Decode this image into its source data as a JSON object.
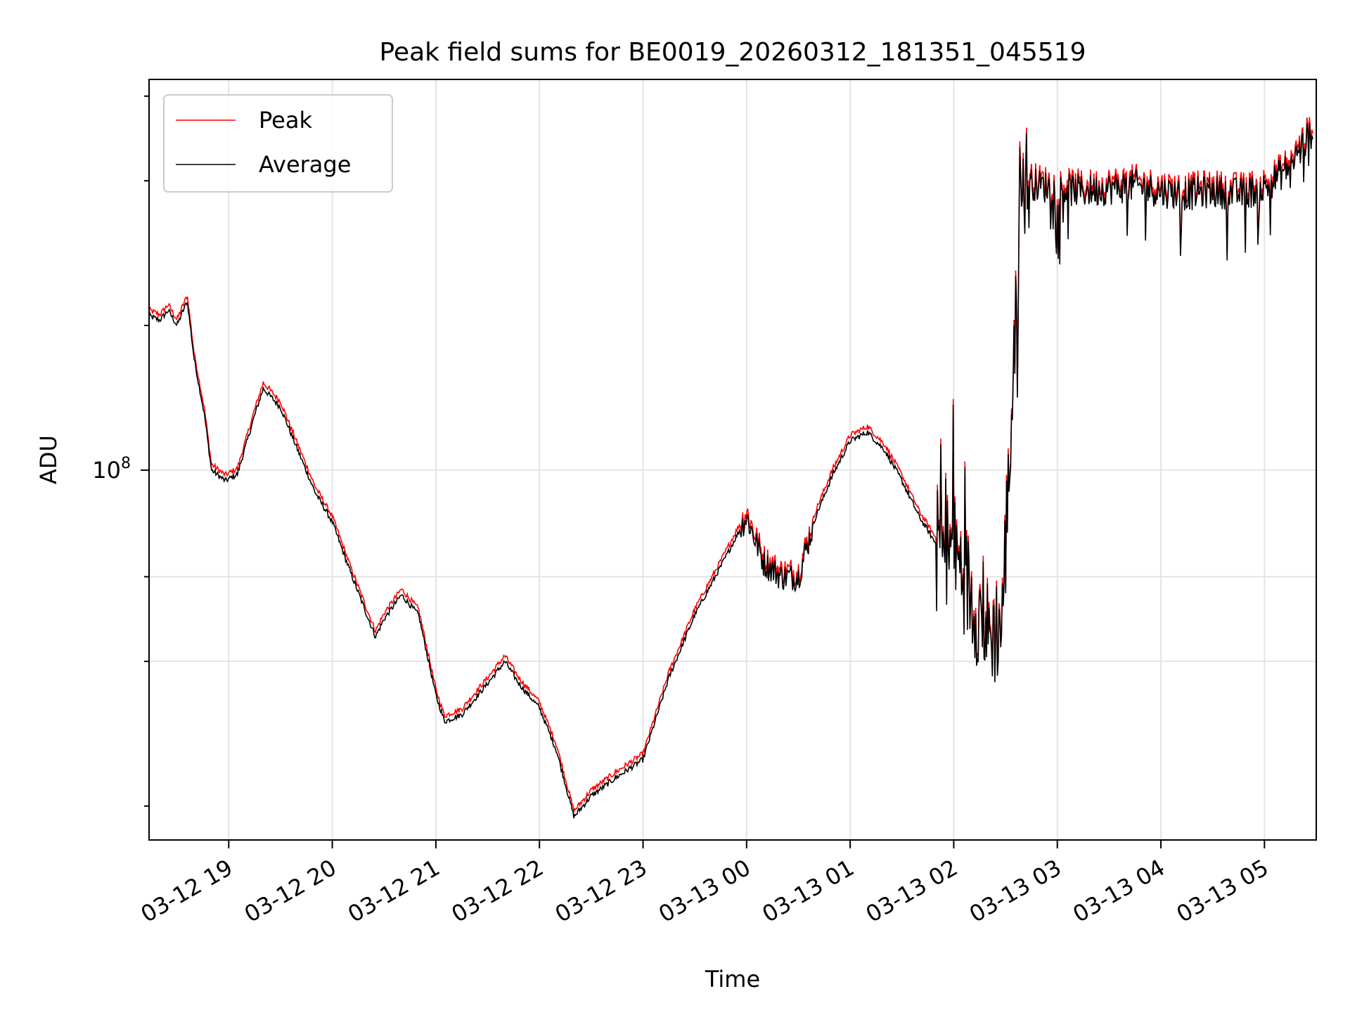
{
  "chart_data": {
    "type": "line",
    "title": "Peak field sums for BE0019_20260312_181351_045519",
    "xlabel": "Time",
    "ylabel": "ADU",
    "y_scale": "log",
    "x_range": [
      "2026-03-12 18:13:51",
      "2026-03-13 05:30:00"
    ],
    "ylim": [
      17000000,
      650000000
    ],
    "y_tick_label": "10^8",
    "y_tick_base": "10",
    "y_tick_exp": "8",
    "x_ticks": [
      "03-12 19",
      "03-12 20",
      "03-12 21",
      "03-12 22",
      "03-12 23",
      "03-13 00",
      "03-13 01",
      "03-13 02",
      "03-13 03",
      "03-13 04",
      "03-13 05"
    ],
    "legend_position": "upper-left",
    "grid": true,
    "series": [
      {
        "name": "Peak",
        "color": "#ff0000"
      },
      {
        "name": "Average",
        "color": "#000000"
      }
    ],
    "x": [
      "2026-03-12 18:13",
      "2026-03-12 18:20",
      "2026-03-12 18:25",
      "2026-03-12 18:30",
      "2026-03-12 18:36",
      "2026-03-12 18:40",
      "2026-03-12 18:46",
      "2026-03-12 18:50",
      "2026-03-12 18:58",
      "2026-03-12 19:05",
      "2026-03-12 19:15",
      "2026-03-12 19:20",
      "2026-03-12 19:30",
      "2026-03-12 19:40",
      "2026-03-12 19:50",
      "2026-03-12 20:00",
      "2026-03-12 20:10",
      "2026-03-12 20:20",
      "2026-03-12 20:25",
      "2026-03-12 20:30",
      "2026-03-12 20:40",
      "2026-03-12 20:50",
      "2026-03-12 21:00",
      "2026-03-12 21:05",
      "2026-03-12 21:15",
      "2026-03-12 21:30",
      "2026-03-12 21:40",
      "2026-03-12 21:48",
      "2026-03-12 22:00",
      "2026-03-12 22:10",
      "2026-03-12 22:20",
      "2026-03-12 22:30",
      "2026-03-12 22:45",
      "2026-03-12 23:00",
      "2026-03-12 23:15",
      "2026-03-12 23:30",
      "2026-03-12 23:45",
      "2026-03-13 00:00",
      "2026-03-13 00:10",
      "2026-03-13 00:20",
      "2026-03-13 00:30",
      "2026-03-13 00:40",
      "2026-03-13 00:50",
      "2026-03-13 01:00",
      "2026-03-13 01:10",
      "2026-03-13 01:20",
      "2026-03-13 01:30",
      "2026-03-13 01:40",
      "2026-03-13 01:50",
      "2026-03-13 02:00",
      "2026-03-13 02:10",
      "2026-03-13 02:20",
      "2026-03-13 02:28",
      "2026-03-13 02:35",
      "2026-03-13 02:40",
      "2026-03-13 02:50",
      "2026-03-13 03:00",
      "2026-03-13 03:15",
      "2026-03-13 03:30",
      "2026-03-13 03:45",
      "2026-03-13 04:00",
      "2026-03-13 04:15",
      "2026-03-13 04:30",
      "2026-03-13 04:45",
      "2026-03-13 05:00",
      "2026-03-13 05:15",
      "2026-03-13 05:28"
    ],
    "average": [
      210000000,
      205000000,
      215000000,
      200000000,
      225000000,
      170000000,
      130000000,
      100000000,
      95000000,
      98000000,
      130000000,
      148000000,
      135000000,
      110000000,
      90000000,
      78000000,
      62000000,
      50000000,
      45000000,
      49000000,
      55000000,
      50000000,
      34000000,
      30000000,
      31000000,
      36000000,
      40000000,
      36000000,
      32000000,
      26000000,
      19000000,
      21000000,
      23000000,
      25000000,
      37000000,
      50000000,
      63000000,
      80000000,
      64000000,
      60000000,
      60000000,
      80000000,
      98000000,
      115000000,
      120000000,
      110000000,
      95000000,
      80000000,
      70000000,
      68000000,
      55000000,
      45000000,
      48000000,
      170000000,
      400000000,
      390000000,
      385000000,
      380000000,
      385000000,
      390000000,
      380000000,
      375000000,
      380000000,
      375000000,
      385000000,
      430000000,
      510000000
    ]
  }
}
